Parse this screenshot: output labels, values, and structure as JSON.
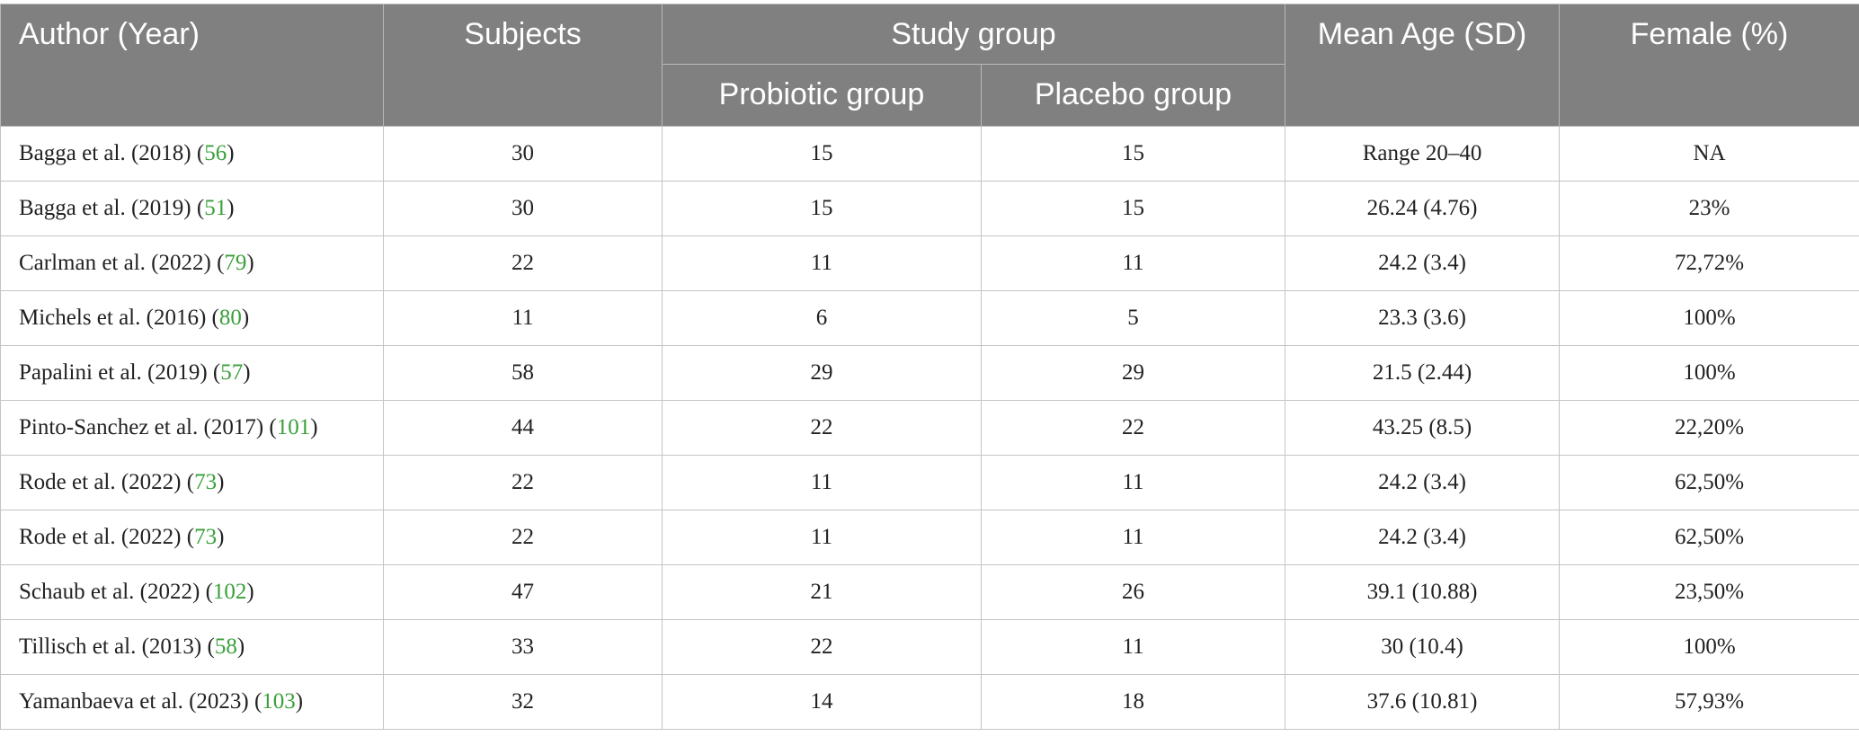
{
  "headers": {
    "author": "Author (Year)",
    "subjects": "Subjects",
    "study_group": "Study group",
    "probiotic": "Probiotic group",
    "placebo": "Placebo group",
    "mean_age": "Mean Age (SD)",
    "female": "Female (%)"
  },
  "rows": [
    {
      "author": "Bagga et al. (2018)",
      "ref": "56",
      "subjects": "30",
      "probiotic": "15",
      "placebo": "15",
      "mean_age": "Range 20–40",
      "female": "NA"
    },
    {
      "author": "Bagga et al. (2019)",
      "ref": "51",
      "subjects": "30",
      "probiotic": "15",
      "placebo": "15",
      "mean_age": "26.24 (4.76)",
      "female": "23%"
    },
    {
      "author": "Carlman et al. (2022)",
      "ref": "79",
      "subjects": "22",
      "probiotic": "11",
      "placebo": "11",
      "mean_age": "24.2 (3.4)",
      "female": "72,72%"
    },
    {
      "author": "Michels et al. (2016)",
      "ref": "80",
      "subjects": "11",
      "probiotic": "6",
      "placebo": "5",
      "mean_age": "23.3 (3.6)",
      "female": "100%"
    },
    {
      "author": "Papalini et al. (2019)",
      "ref": "57",
      "subjects": "58",
      "probiotic": "29",
      "placebo": "29",
      "mean_age": "21.5 (2.44)",
      "female": "100%"
    },
    {
      "author": "Pinto-Sanchez et al. (2017)",
      "ref": "101",
      "subjects": "44",
      "probiotic": "22",
      "placebo": "22",
      "mean_age": "43.25 (8.5)",
      "female": "22,20%"
    },
    {
      "author": "Rode et al. (2022)",
      "ref": "73",
      "subjects": "22",
      "probiotic": "11",
      "placebo": "11",
      "mean_age": "24.2 (3.4)",
      "female": "62,50%"
    },
    {
      "author": "Rode et al. (2022)",
      "ref": "73",
      "subjects": "22",
      "probiotic": "11",
      "placebo": "11",
      "mean_age": "24.2 (3.4)",
      "female": "62,50%"
    },
    {
      "author": "Schaub et al. (2022)",
      "ref": "102",
      "subjects": "47",
      "probiotic": "21",
      "placebo": "26",
      "mean_age": "39.1 (10.88)",
      "female": "23,50%"
    },
    {
      "author": "Tillisch et al. (2013)",
      "ref": "58",
      "subjects": "33",
      "probiotic": "22",
      "placebo": "11",
      "mean_age": "30 (10.4)",
      "female": "100%"
    },
    {
      "author": "Yamanbaeva et al. (2023)",
      "ref": "103",
      "subjects": "32",
      "probiotic": "14",
      "placebo": "18",
      "mean_age": "37.6 (10.81)",
      "female": "57,93%"
    }
  ]
}
